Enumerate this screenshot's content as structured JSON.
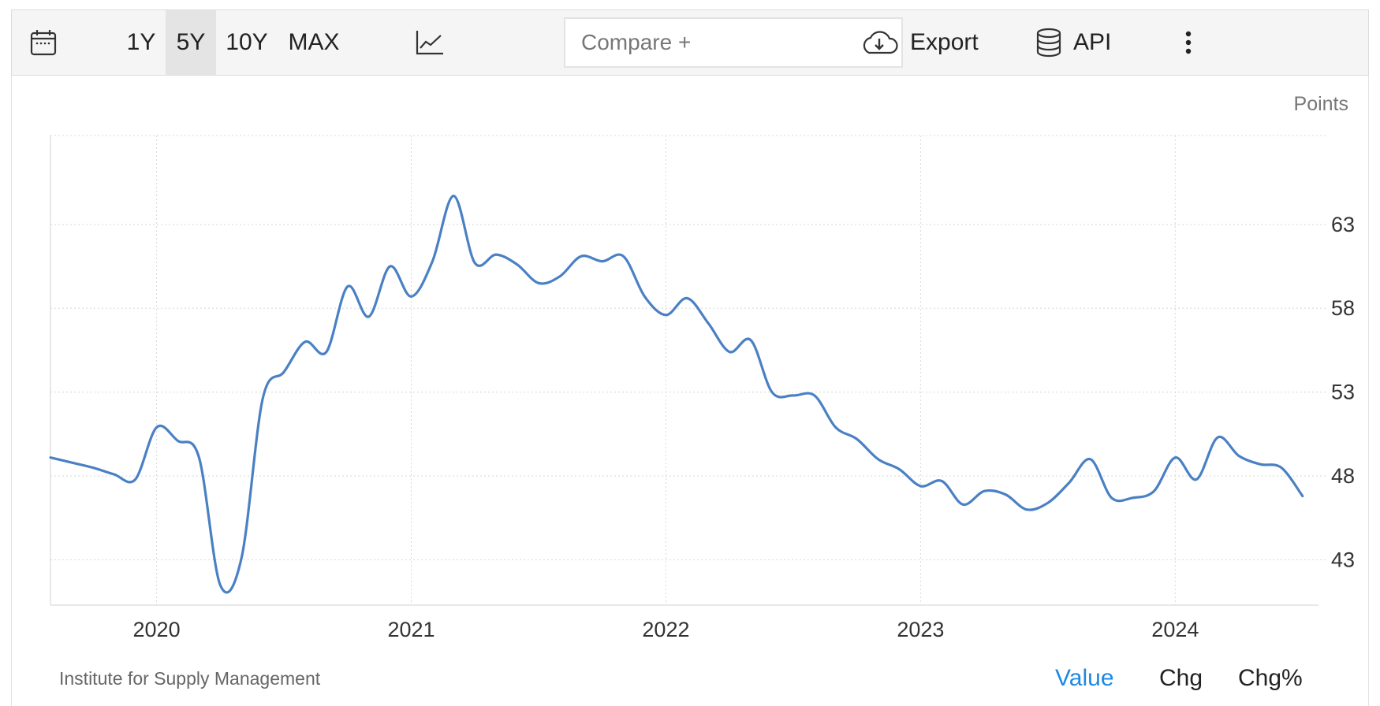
{
  "toolbar": {
    "ranges": [
      "1Y",
      "5Y",
      "10Y",
      "MAX"
    ],
    "active_range": "5Y",
    "compare_placeholder": "Compare +",
    "export_label": "Export",
    "api_label": "API"
  },
  "chart_unit": "Points",
  "source": "Institute for Supply Management",
  "view_modes": [
    "Value",
    "Chg",
    "Chg%"
  ],
  "active_mode": "Value",
  "colors": {
    "line": "#4a80c4",
    "active_mode": "#1e88e5",
    "grid": "#d8d8d8"
  },
  "chart_data": {
    "type": "line",
    "title": "",
    "xlabel": "",
    "ylabel": "Points",
    "ylim": [
      40.3,
      68.3
    ],
    "yticks": [
      43,
      48,
      53,
      58,
      63
    ],
    "xticks": [
      "2020",
      "2021",
      "2022",
      "2023",
      "2024"
    ],
    "grid": true,
    "series": [
      {
        "x": [
          "2019-08",
          "2019-09",
          "2019-10",
          "2019-11",
          "2019-12",
          "2020-01",
          "2020-02",
          "2020-03",
          "2020-04",
          "2020-05",
          "2020-06",
          "2020-07",
          "2020-08",
          "2020-09",
          "2020-10",
          "2020-11",
          "2020-12",
          "2021-01",
          "2021-02",
          "2021-03",
          "2021-04",
          "2021-05",
          "2021-06",
          "2021-07",
          "2021-08",
          "2021-09",
          "2021-10",
          "2021-11",
          "2021-12",
          "2022-01",
          "2022-02",
          "2022-03",
          "2022-04",
          "2022-05",
          "2022-06",
          "2022-07",
          "2022-08",
          "2022-09",
          "2022-10",
          "2022-11",
          "2022-12",
          "2023-01",
          "2023-02",
          "2023-03",
          "2023-04",
          "2023-05",
          "2023-06",
          "2023-07",
          "2023-08",
          "2023-09",
          "2023-10",
          "2023-11",
          "2023-12",
          "2024-01",
          "2024-02",
          "2024-03",
          "2024-04",
          "2024-05",
          "2024-06",
          "2024-07"
        ],
        "values": [
          49.1,
          48.8,
          48.5,
          48.1,
          47.8,
          50.9,
          50.1,
          49.1,
          41.5,
          43.1,
          52.6,
          54.2,
          56.0,
          55.4,
          59.3,
          57.5,
          60.5,
          58.7,
          60.8,
          64.7,
          60.7,
          61.2,
          60.6,
          59.5,
          59.9,
          61.1,
          60.8,
          61.1,
          58.7,
          57.6,
          58.6,
          57.1,
          55.4,
          56.1,
          53.0,
          52.8,
          52.8,
          50.9,
          50.2,
          49.0,
          48.4,
          47.4,
          47.7,
          46.3,
          47.1,
          46.9,
          46.0,
          46.4,
          47.6,
          49.0,
          46.7,
          46.7,
          47.1,
          49.1,
          47.8,
          50.3,
          49.2,
          48.7,
          48.5,
          46.8
        ]
      }
    ]
  }
}
